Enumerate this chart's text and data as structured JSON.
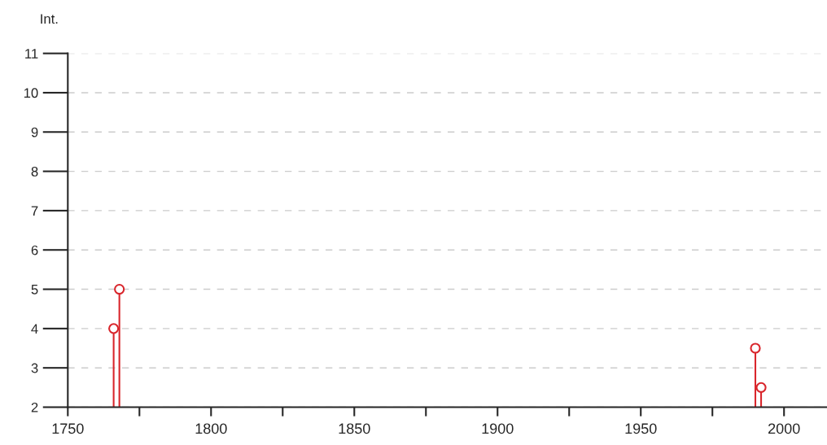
{
  "chart_data": {
    "type": "lollipop",
    "ylabel": "Int.",
    "x": [
      1766,
      1768,
      1990,
      1992
    ],
    "series": [
      {
        "color": "#d9262c",
        "values": [
          4,
          5,
          3.5,
          2.5
        ]
      }
    ],
    "marker": "circle",
    "grid": "y",
    "xlim": [
      1750,
      2015
    ],
    "xticks": [
      1750,
      {
        "value": 1775,
        "label": null
      },
      1800,
      {
        "value": 1825,
        "label": null
      },
      1850,
      {
        "value": 1875,
        "label": null
      },
      1900,
      {
        "value": 1925,
        "label": null
      },
      1950,
      {
        "value": 1975,
        "label": null
      },
      2000
    ],
    "ylim": [
      2,
      11
    ],
    "yticks": [
      2,
      3,
      4,
      5,
      6,
      7,
      8,
      9,
      10,
      11
    ]
  }
}
